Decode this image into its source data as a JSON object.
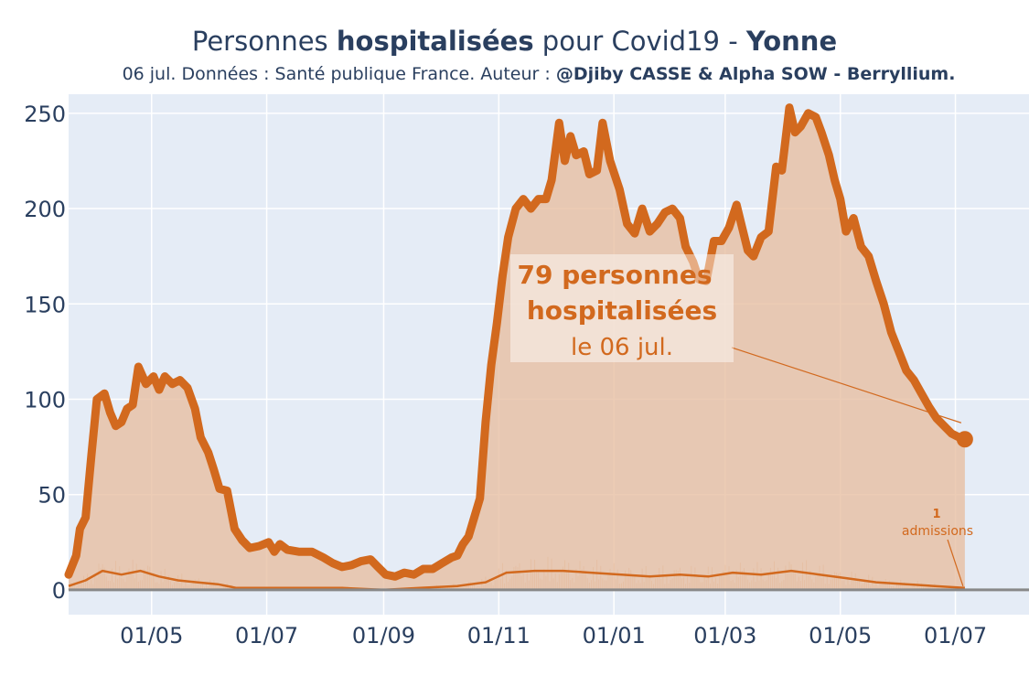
{
  "title": {
    "prefix": "Personnes ",
    "bold": "hospitalisées",
    "middle": " pour Covid19 - ",
    "region": "Yonne"
  },
  "subtitle": {
    "text": "06 jul. Données : Santé publique France. Auteur : ",
    "authors": "@Djiby CASSE & Alpha SOW - Berryllium."
  },
  "colors": {
    "plot_bg": "#e5ecf6",
    "line": "#d2691e",
    "fill": "#e7bfa3",
    "axis_text": "#2a3f5f",
    "zero_line": "#888888"
  },
  "annotation_main": {
    "line1": "79 personnes",
    "line2": "hospitalisées",
    "line3": "le 06 jul."
  },
  "annotation_admissions": {
    "value": "1",
    "label": "admissions"
  },
  "chart_data": {
    "type": "area",
    "title": "Personnes hospitalisées pour Covid19 - Yonne",
    "ylim": [
      -13,
      260
    ],
    "xlim": [
      "2020-03-18",
      "2021-08-09"
    ],
    "y_ticks": [
      0,
      50,
      100,
      150,
      200,
      250
    ],
    "x_ticks": [
      {
        "date": "2020-05-01",
        "label": "01/05"
      },
      {
        "date": "2020-07-01",
        "label": "01/07"
      },
      {
        "date": "2020-09-01",
        "label": "01/09"
      },
      {
        "date": "2020-11-01",
        "label": "01/11"
      },
      {
        "date": "2021-01-01",
        "label": "01/01"
      },
      {
        "date": "2021-03-01",
        "label": "01/03"
      },
      {
        "date": "2021-05-01",
        "label": "01/05"
      },
      {
        "date": "2021-07-01",
        "label": "01/07"
      }
    ],
    "grid": true,
    "series": [
      {
        "role": "hospitalisations",
        "points": [
          [
            "2020-03-18",
            8
          ],
          [
            "2020-03-22",
            18
          ],
          [
            "2020-03-24",
            32
          ],
          [
            "2020-03-27",
            38
          ],
          [
            "2020-03-30",
            70
          ],
          [
            "2020-04-02",
            100
          ],
          [
            "2020-04-06",
            103
          ],
          [
            "2020-04-09",
            93
          ],
          [
            "2020-04-12",
            86
          ],
          [
            "2020-04-15",
            88
          ],
          [
            "2020-04-18",
            95
          ],
          [
            "2020-04-21",
            97
          ],
          [
            "2020-04-24",
            117
          ],
          [
            "2020-04-28",
            108
          ],
          [
            "2020-05-02",
            112
          ],
          [
            "2020-05-05",
            105
          ],
          [
            "2020-05-08",
            112
          ],
          [
            "2020-05-12",
            108
          ],
          [
            "2020-05-16",
            110
          ],
          [
            "2020-05-20",
            106
          ],
          [
            "2020-05-24",
            95
          ],
          [
            "2020-05-27",
            80
          ],
          [
            "2020-05-31",
            72
          ],
          [
            "2020-06-03",
            63
          ],
          [
            "2020-06-06",
            53
          ],
          [
            "2020-06-10",
            52
          ],
          [
            "2020-06-14",
            32
          ],
          [
            "2020-06-18",
            26
          ],
          [
            "2020-06-22",
            22
          ],
          [
            "2020-06-27",
            23
          ],
          [
            "2020-07-02",
            25
          ],
          [
            "2020-07-05",
            20
          ],
          [
            "2020-07-08",
            24
          ],
          [
            "2020-07-12",
            21
          ],
          [
            "2020-07-18",
            20
          ],
          [
            "2020-07-25",
            20
          ],
          [
            "2020-07-31",
            17
          ],
          [
            "2020-08-05",
            14
          ],
          [
            "2020-08-10",
            12
          ],
          [
            "2020-08-15",
            13
          ],
          [
            "2020-08-20",
            15
          ],
          [
            "2020-08-25",
            16
          ],
          [
            "2020-08-29",
            12
          ],
          [
            "2020-09-02",
            8
          ],
          [
            "2020-09-07",
            7
          ],
          [
            "2020-09-12",
            9
          ],
          [
            "2020-09-17",
            8
          ],
          [
            "2020-09-22",
            11
          ],
          [
            "2020-09-27",
            11
          ],
          [
            "2020-10-02",
            14
          ],
          [
            "2020-10-07",
            17
          ],
          [
            "2020-10-10",
            18
          ],
          [
            "2020-10-13",
            24
          ],
          [
            "2020-10-16",
            28
          ],
          [
            "2020-10-19",
            38
          ],
          [
            "2020-10-22",
            48
          ],
          [
            "2020-10-25",
            88
          ],
          [
            "2020-10-28",
            118
          ],
          [
            "2020-10-31",
            140
          ],
          [
            "2020-11-03",
            165
          ],
          [
            "2020-11-06",
            185
          ],
          [
            "2020-11-10",
            200
          ],
          [
            "2020-11-14",
            205
          ],
          [
            "2020-11-18",
            200
          ],
          [
            "2020-11-22",
            205
          ],
          [
            "2020-11-26",
            205
          ],
          [
            "2020-11-29",
            215
          ],
          [
            "2020-12-03",
            245
          ],
          [
            "2020-12-06",
            225
          ],
          [
            "2020-12-09",
            238
          ],
          [
            "2020-12-12",
            228
          ],
          [
            "2020-12-16",
            230
          ],
          [
            "2020-12-19",
            218
          ],
          [
            "2020-12-23",
            220
          ],
          [
            "2020-12-26",
            245
          ],
          [
            "2020-12-30",
            225
          ],
          [
            "2021-01-04",
            210
          ],
          [
            "2021-01-08",
            192
          ],
          [
            "2021-01-12",
            187
          ],
          [
            "2021-01-16",
            200
          ],
          [
            "2021-01-20",
            188
          ],
          [
            "2021-01-24",
            192
          ],
          [
            "2021-01-28",
            198
          ],
          [
            "2021-02-01",
            200
          ],
          [
            "2021-02-05",
            195
          ],
          [
            "2021-02-08",
            180
          ],
          [
            "2021-02-12",
            172
          ],
          [
            "2021-02-15",
            163
          ],
          [
            "2021-02-19",
            162
          ],
          [
            "2021-02-23",
            183
          ],
          [
            "2021-02-27",
            183
          ],
          [
            "2021-03-03",
            190
          ],
          [
            "2021-03-07",
            202
          ],
          [
            "2021-03-10",
            190
          ],
          [
            "2021-03-13",
            178
          ],
          [
            "2021-03-16",
            175
          ],
          [
            "2021-03-20",
            185
          ],
          [
            "2021-03-24",
            188
          ],
          [
            "2021-03-28",
            222
          ],
          [
            "2021-03-31",
            220
          ],
          [
            "2021-04-04",
            253
          ],
          [
            "2021-04-07",
            240
          ],
          [
            "2021-04-10",
            243
          ],
          [
            "2021-04-14",
            250
          ],
          [
            "2021-04-18",
            248
          ],
          [
            "2021-04-21",
            240
          ],
          [
            "2021-04-25",
            228
          ],
          [
            "2021-04-28",
            215
          ],
          [
            "2021-05-01",
            205
          ],
          [
            "2021-05-04",
            188
          ],
          [
            "2021-05-08",
            195
          ],
          [
            "2021-05-12",
            180
          ],
          [
            "2021-05-16",
            175
          ],
          [
            "2021-05-20",
            162
          ],
          [
            "2021-05-24",
            150
          ],
          [
            "2021-05-28",
            135
          ],
          [
            "2021-06-01",
            125
          ],
          [
            "2021-06-05",
            115
          ],
          [
            "2021-06-09",
            110
          ],
          [
            "2021-06-13",
            103
          ],
          [
            "2021-06-17",
            96
          ],
          [
            "2021-06-21",
            90
          ],
          [
            "2021-06-25",
            86
          ],
          [
            "2021-06-29",
            82
          ],
          [
            "2021-07-03",
            80
          ],
          [
            "2021-07-06",
            79
          ]
        ]
      },
      {
        "role": "admissions",
        "points": [
          [
            "2020-03-18",
            2
          ],
          [
            "2020-03-27",
            5
          ],
          [
            "2020-04-05",
            10
          ],
          [
            "2020-04-15",
            8
          ],
          [
            "2020-04-25",
            10
          ],
          [
            "2020-05-05",
            7
          ],
          [
            "2020-05-15",
            5
          ],
          [
            "2020-05-25",
            4
          ],
          [
            "2020-06-05",
            3
          ],
          [
            "2020-06-15",
            1
          ],
          [
            "2020-06-25",
            1
          ],
          [
            "2020-07-15",
            1
          ],
          [
            "2020-08-10",
            1
          ],
          [
            "2020-09-01",
            0
          ],
          [
            "2020-09-20",
            1
          ],
          [
            "2020-10-10",
            2
          ],
          [
            "2020-10-25",
            4
          ],
          [
            "2020-11-05",
            9
          ],
          [
            "2020-11-20",
            10
          ],
          [
            "2020-12-05",
            10
          ],
          [
            "2020-12-20",
            9
          ],
          [
            "2021-01-05",
            8
          ],
          [
            "2021-01-20",
            7
          ],
          [
            "2021-02-05",
            8
          ],
          [
            "2021-02-20",
            7
          ],
          [
            "2021-03-05",
            9
          ],
          [
            "2021-03-20",
            8
          ],
          [
            "2021-04-05",
            10
          ],
          [
            "2021-04-20",
            8
          ],
          [
            "2021-05-05",
            6
          ],
          [
            "2021-05-20",
            4
          ],
          [
            "2021-06-05",
            3
          ],
          [
            "2021-06-20",
            2
          ],
          [
            "2021-07-06",
            1
          ]
        ]
      }
    ],
    "last_value": {
      "date": "2021-07-06",
      "value": 79
    },
    "last_admissions": {
      "date": "2021-07-06",
      "value": 1
    }
  }
}
